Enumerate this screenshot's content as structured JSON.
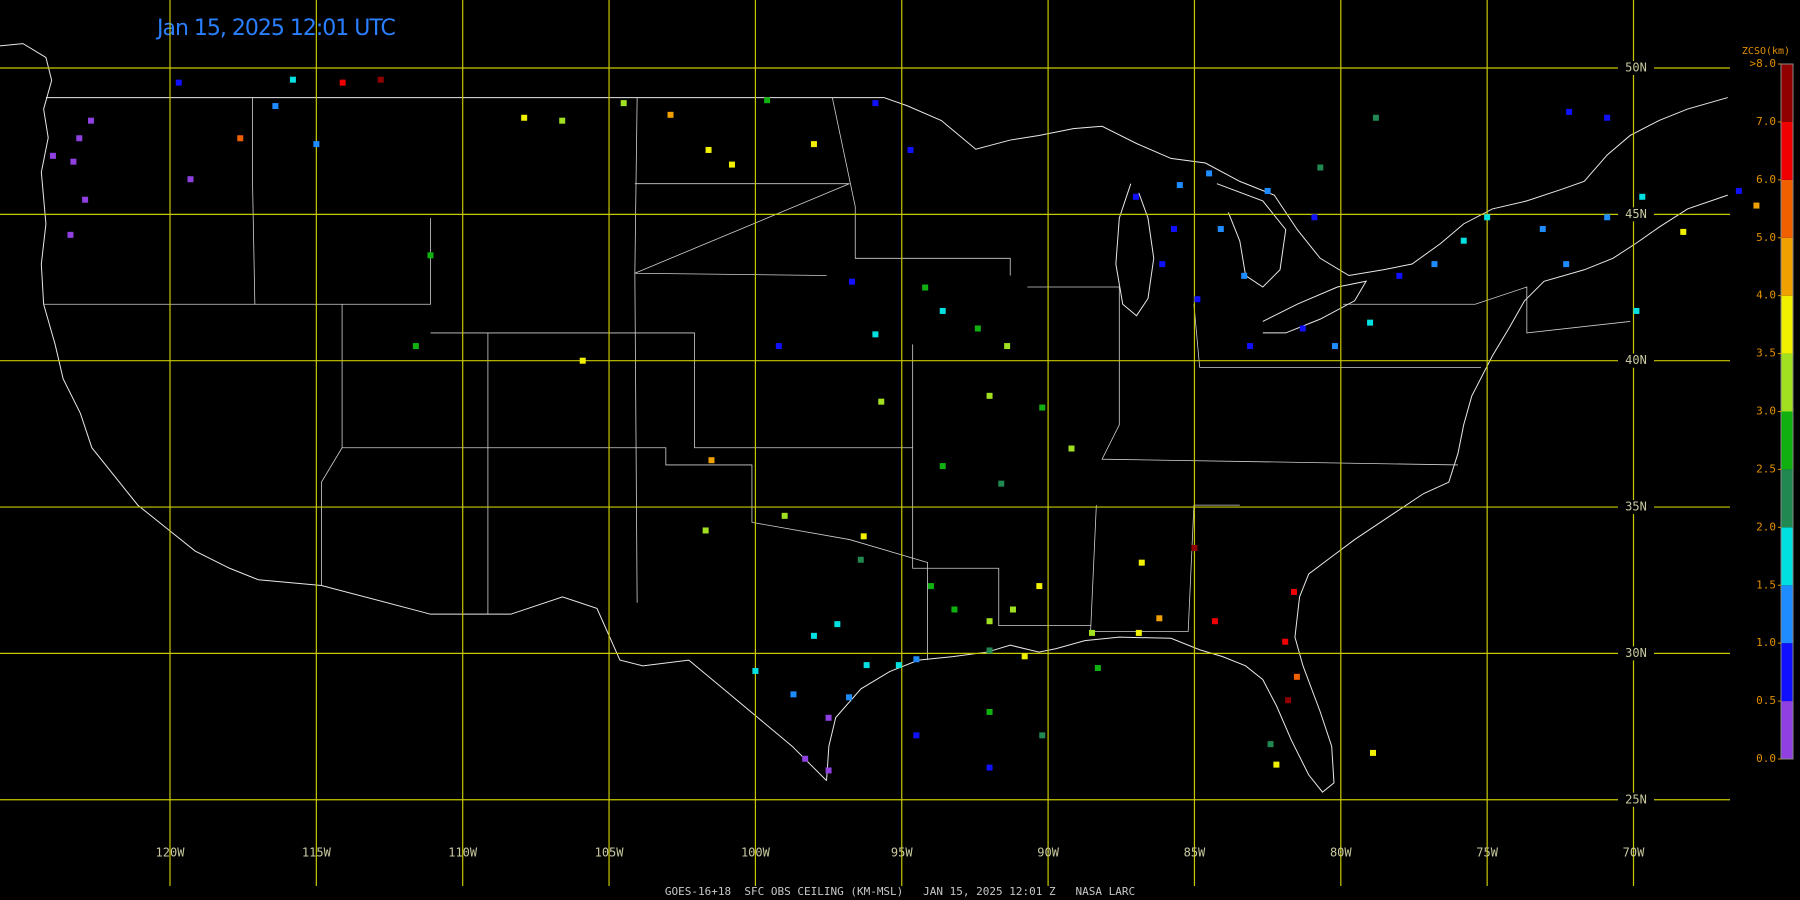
{
  "title": "Jan 15, 2025 12:01 UTC",
  "footer": "GOES-16+18  SFC OBS CEILING (KM-MSL)   JAN 15, 2025 12:01 Z   NASA LARC",
  "lon_lines": [
    {
      "value": -120,
      "label": "120W"
    },
    {
      "value": -115,
      "label": "115W"
    },
    {
      "value": -110,
      "label": "110W"
    },
    {
      "value": -105,
      "label": "105W"
    },
    {
      "value": -100,
      "label": "100W"
    },
    {
      "value": -95,
      "label": "95W"
    },
    {
      "value": -90,
      "label": "90W"
    },
    {
      "value": -85,
      "label": "85W"
    },
    {
      "value": -80,
      "label": "80W"
    },
    {
      "value": -75,
      "label": "75W"
    },
    {
      "value": -70,
      "label": "70W"
    }
  ],
  "lat_lines": [
    {
      "value": 50,
      "label": "50N"
    },
    {
      "value": 45,
      "label": "45N"
    },
    {
      "value": 40,
      "label": "40N"
    },
    {
      "value": 35,
      "label": "35N"
    },
    {
      "value": 30,
      "label": "30N"
    },
    {
      "value": 25,
      "label": "25N"
    }
  ],
  "colorbar": {
    "title": "ZCSO(km)",
    "ticks": [
      {
        "value": 0,
        "label": "0.0"
      },
      {
        "value": 0.5,
        "label": "0.5"
      },
      {
        "value": 1,
        "label": "1.0"
      },
      {
        "value": 1.5,
        "label": "1.5"
      },
      {
        "value": 2,
        "label": "2.0"
      },
      {
        "value": 2.5,
        "label": "2.5"
      },
      {
        "value": 3,
        "label": "3.0"
      },
      {
        "value": 3.5,
        "label": "3.5"
      },
      {
        "value": 4,
        "label": "4.0"
      },
      {
        "value": 5,
        "label": "5.0"
      },
      {
        "value": 6,
        "label": "6.0"
      },
      {
        "value": 7,
        "label": "7.0"
      },
      {
        "value": 8,
        "label": ">8.0"
      }
    ],
    "colors": [
      "#9040e0",
      "#1010ff",
      "#1e8cff",
      "#00e0e0",
      "#208850",
      "#10b010",
      "#a0e020",
      "#f0f000",
      "#f0a000",
      "#f06000",
      "#f00000",
      "#900000"
    ]
  },
  "stations": [
    {
      "lon": -123.1,
      "lat": 47.6,
      "ceiling": 0.3
    },
    {
      "lon": -122.7,
      "lat": 48.2,
      "ceiling": 0.4
    },
    {
      "lon": -123.3,
      "lat": 46.8,
      "ceiling": 0.3
    },
    {
      "lon": -122.9,
      "lat": 45.5,
      "ceiling": 0.4
    },
    {
      "lon": -123.4,
      "lat": 44.3,
      "ceiling": 0.3
    },
    {
      "lon": -124.0,
      "lat": 47.0,
      "ceiling": 0.4
    },
    {
      "lon": -119.7,
      "lat": 49.5,
      "ceiling": 0.8
    },
    {
      "lon": -115.8,
      "lat": 49.6,
      "ceiling": 1.8
    },
    {
      "lon": -114.1,
      "lat": 49.5,
      "ceiling": 6.8
    },
    {
      "lon": -112.8,
      "lat": 49.6,
      "ceiling": 7.6
    },
    {
      "lon": -117.6,
      "lat": 47.6,
      "ceiling": 5.2
    },
    {
      "lon": -119.3,
      "lat": 46.2,
      "ceiling": 0.4
    },
    {
      "lon": -116.4,
      "lat": 48.7,
      "ceiling": 1.3
    },
    {
      "lon": -115.0,
      "lat": 47.4,
      "ceiling": 1.2
    },
    {
      "lon": -107.9,
      "lat": 48.3,
      "ceiling": 3.8
    },
    {
      "lon": -106.6,
      "lat": 48.2,
      "ceiling": 3.0
    },
    {
      "lon": -104.5,
      "lat": 48.8,
      "ceiling": 3.2
    },
    {
      "lon": -102.9,
      "lat": 48.4,
      "ceiling": 4.8
    },
    {
      "lon": -101.6,
      "lat": 47.2,
      "ceiling": 3.7
    },
    {
      "lon": -100.8,
      "lat": 46.7,
      "ceiling": 3.9
    },
    {
      "lon": -99.6,
      "lat": 48.9,
      "ceiling": 2.8
    },
    {
      "lon": -98.0,
      "lat": 47.4,
      "ceiling": 3.6
    },
    {
      "lon": -95.9,
      "lat": 48.8,
      "ceiling": 0.9
    },
    {
      "lon": -94.7,
      "lat": 47.2,
      "ceiling": 0.8
    },
    {
      "lon": -111.1,
      "lat": 43.6,
      "ceiling": 2.8
    },
    {
      "lon": -111.6,
      "lat": 40.5,
      "ceiling": 2.9
    },
    {
      "lon": -105.9,
      "lat": 40.0,
      "ceiling": 3.7
    },
    {
      "lon": -101.5,
      "lat": 36.6,
      "ceiling": 4.7
    },
    {
      "lon": -96.7,
      "lat": 42.7,
      "ceiling": 0.9
    },
    {
      "lon": -99.2,
      "lat": 40.5,
      "ceiling": 0.8
    },
    {
      "lon": -95.9,
      "lat": 40.9,
      "ceiling": 1.7
    },
    {
      "lon": -93.6,
      "lat": 41.7,
      "ceiling": 1.8
    },
    {
      "lon": -94.2,
      "lat": 42.5,
      "ceiling": 2.7
    },
    {
      "lon": -92.4,
      "lat": 41.1,
      "ceiling": 2.8
    },
    {
      "lon": -91.4,
      "lat": 40.5,
      "ceiling": 3.3
    },
    {
      "lon": -95.7,
      "lat": 38.6,
      "ceiling": 3.3
    },
    {
      "lon": -92.0,
      "lat": 38.8,
      "ceiling": 3.2
    },
    {
      "lon": -90.2,
      "lat": 38.4,
      "ceiling": 2.9
    },
    {
      "lon": -93.6,
      "lat": 36.4,
      "ceiling": 2.8
    },
    {
      "lon": -91.6,
      "lat": 35.8,
      "ceiling": 2.2
    },
    {
      "lon": -89.2,
      "lat": 37.0,
      "ceiling": 3.4
    },
    {
      "lon": -99.0,
      "lat": 34.7,
      "ceiling": 3.3
    },
    {
      "lon": -96.3,
      "lat": 34.0,
      "ceiling": 3.6
    },
    {
      "lon": -101.7,
      "lat": 34.2,
      "ceiling": 3.0
    },
    {
      "lon": -96.4,
      "lat": 33.2,
      "ceiling": 2.3
    },
    {
      "lon": -98.0,
      "lat": 30.6,
      "ceiling": 1.7
    },
    {
      "lon": -97.2,
      "lat": 31.0,
      "ceiling": 1.8
    },
    {
      "lon": -96.2,
      "lat": 29.6,
      "ceiling": 1.8
    },
    {
      "lon": -95.1,
      "lat": 29.6,
      "ceiling": 1.6
    },
    {
      "lon": -94.5,
      "lat": 29.8,
      "ceiling": 1.3
    },
    {
      "lon": -100.0,
      "lat": 29.4,
      "ceiling": 1.8
    },
    {
      "lon": -98.7,
      "lat": 28.6,
      "ceiling": 1.2
    },
    {
      "lon": -97.5,
      "lat": 27.8,
      "ceiling": 0.4
    },
    {
      "lon": -98.3,
      "lat": 26.4,
      "ceiling": 0.3
    },
    {
      "lon": -97.5,
      "lat": 26.0,
      "ceiling": 0.4
    },
    {
      "lon": -96.8,
      "lat": 28.5,
      "ceiling": 1.0
    },
    {
      "lon": -94.0,
      "lat": 32.3,
      "ceiling": 2.8
    },
    {
      "lon": -93.2,
      "lat": 31.5,
      "ceiling": 2.6
    },
    {
      "lon": -92.0,
      "lat": 31.1,
      "ceiling": 3.2
    },
    {
      "lon": -91.2,
      "lat": 31.5,
      "ceiling": 3.3
    },
    {
      "lon": -90.3,
      "lat": 32.3,
      "ceiling": 3.6
    },
    {
      "lon": -92.0,
      "lat": 30.1,
      "ceiling": 2.4
    },
    {
      "lon": -90.8,
      "lat": 29.9,
      "ceiling": 3.6
    },
    {
      "lon": -88.5,
      "lat": 30.7,
      "ceiling": 3.3
    },
    {
      "lon": -86.9,
      "lat": 30.7,
      "ceiling": 3.7
    },
    {
      "lon": -86.2,
      "lat": 31.2,
      "ceiling": 4.3
    },
    {
      "lon": -86.8,
      "lat": 33.1,
      "ceiling": 3.8
    },
    {
      "lon": -85.0,
      "lat": 33.6,
      "ceiling": 7.4
    },
    {
      "lon": -84.3,
      "lat": 31.1,
      "ceiling": 6.6
    },
    {
      "lon": -81.6,
      "lat": 32.1,
      "ceiling": 6.6
    },
    {
      "lon": -81.9,
      "lat": 30.4,
      "ceiling": 6.8
    },
    {
      "lon": -81.5,
      "lat": 29.2,
      "ceiling": 5.3
    },
    {
      "lon": -81.8,
      "lat": 28.4,
      "ceiling": 7.2
    },
    {
      "lon": -82.2,
      "lat": 26.2,
      "ceiling": 3.8
    },
    {
      "lon": -82.4,
      "lat": 26.9,
      "ceiling": 2.3
    },
    {
      "lon": -78.9,
      "lat": 26.6,
      "ceiling": 3.8
    },
    {
      "lon": -87.0,
      "lat": 45.6,
      "ceiling": 0.9
    },
    {
      "lon": -85.5,
      "lat": 46.0,
      "ceiling": 1.1
    },
    {
      "lon": -84.5,
      "lat": 46.4,
      "ceiling": 1.2
    },
    {
      "lon": -86.1,
      "lat": 43.3,
      "ceiling": 0.8
    },
    {
      "lon": -84.9,
      "lat": 42.1,
      "ceiling": 0.9
    },
    {
      "lon": -83.3,
      "lat": 42.9,
      "ceiling": 1.1
    },
    {
      "lon": -85.7,
      "lat": 44.5,
      "ceiling": 0.9
    },
    {
      "lon": -84.1,
      "lat": 44.5,
      "ceiling": 1.3
    },
    {
      "lon": -82.5,
      "lat": 45.8,
      "ceiling": 1.2
    },
    {
      "lon": -80.9,
      "lat": 44.9,
      "ceiling": 0.8
    },
    {
      "lon": -83.1,
      "lat": 40.5,
      "ceiling": 0.7
    },
    {
      "lon": -81.3,
      "lat": 41.1,
      "ceiling": 0.9
    },
    {
      "lon": -80.2,
      "lat": 40.5,
      "ceiling": 1.2
    },
    {
      "lon": -79.0,
      "lat": 41.3,
      "ceiling": 1.6
    },
    {
      "lon": -78.0,
      "lat": 42.9,
      "ceiling": 0.9
    },
    {
      "lon": -76.8,
      "lat": 43.3,
      "ceiling": 1.2
    },
    {
      "lon": -75.8,
      "lat": 44.1,
      "ceiling": 1.7
    },
    {
      "lon": -75.0,
      "lat": 44.9,
      "ceiling": 1.8
    },
    {
      "lon": -73.1,
      "lat": 44.5,
      "ceiling": 1.3
    },
    {
      "lon": -72.3,
      "lat": 43.3,
      "ceiling": 1.1
    },
    {
      "lon": -70.9,
      "lat": 44.9,
      "ceiling": 1.2
    },
    {
      "lon": -69.9,
      "lat": 41.7,
      "ceiling": 1.6
    },
    {
      "lon": -80.7,
      "lat": 46.6,
      "ceiling": 2.3
    },
    {
      "lon": -78.8,
      "lat": 48.3,
      "ceiling": 2.4
    },
    {
      "lon": -72.2,
      "lat": 48.5,
      "ceiling": 0.9
    },
    {
      "lon": -70.9,
      "lat": 48.3,
      "ceiling": 0.8
    },
    {
      "lon": -69.7,
      "lat": 45.6,
      "ceiling": 1.6
    },
    {
      "lon": -68.3,
      "lat": 44.4,
      "ceiling": 3.6
    },
    {
      "lon": -66.4,
      "lat": 45.8,
      "ceiling": 0.8
    },
    {
      "lon": -65.8,
      "lat": 45.3,
      "ceiling": 4.6
    },
    {
      "lon": -88.3,
      "lat": 29.5,
      "ceiling": 2.7
    },
    {
      "lon": -92.0,
      "lat": 28.0,
      "ceiling": 2.6
    },
    {
      "lon": -92.0,
      "lat": 26.1,
      "ceiling": 0.8
    },
    {
      "lon": -94.5,
      "lat": 27.2,
      "ceiling": 0.9
    },
    {
      "lon": -90.2,
      "lat": 27.2,
      "ceiling": 2.3
    }
  ]
}
